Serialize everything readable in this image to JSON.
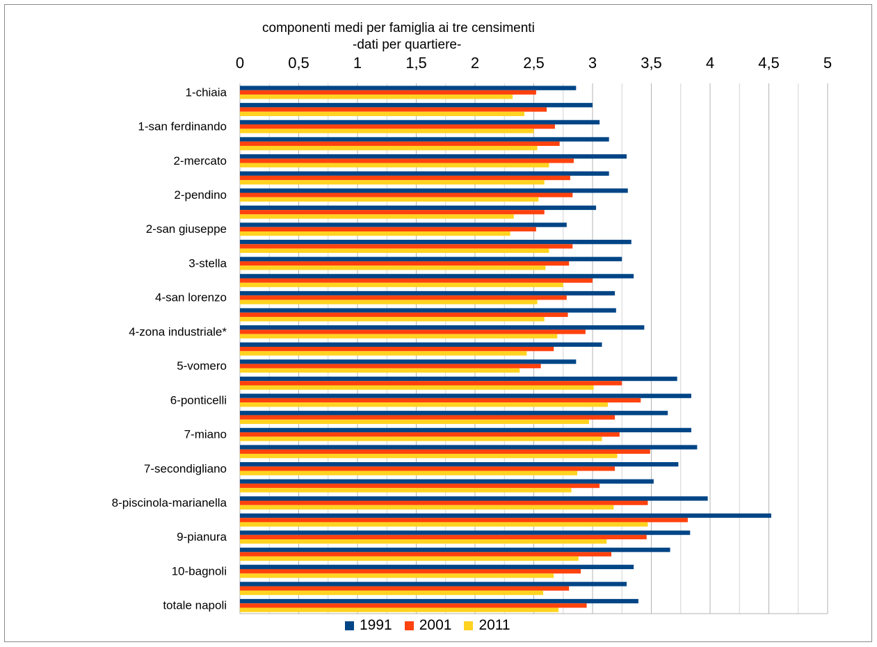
{
  "chart_data": {
    "type": "bar",
    "orientation": "horizontal",
    "title": "componenti medi per famiglia ai tre censimenti",
    "subtitle": "-dati per quartiere-",
    "xlim": [
      0,
      5
    ],
    "x_ticks": [
      "0",
      "0,5",
      "1",
      "1,5",
      "2",
      "2,5",
      "3",
      "3,5",
      "4",
      "4,5",
      "5"
    ],
    "x_axis_position": "top",
    "grid": true,
    "legend_position": "bottom",
    "category_labels": [
      "1-chiaia",
      "1-san ferdinando",
      "2-mercato",
      "2-pendino",
      "2-san giuseppe",
      "3-stella",
      "4-san lorenzo",
      "4-zona industriale*",
      "5-vomero",
      "6-ponticelli",
      "7-miano",
      "7-secondigliano",
      "8-piscinola-marianella",
      "9-pianura",
      "10-bagnoli",
      "totale napoli"
    ],
    "series": [
      {
        "name": "1991",
        "color": "#004586",
        "values": [
          2.86,
          3.0,
          3.06,
          3.14,
          3.29,
          3.14,
          3.3,
          3.03,
          2.78,
          3.33,
          3.25,
          3.35,
          3.19,
          3.2,
          3.44,
          3.08,
          2.86,
          3.72,
          3.84,
          3.64,
          3.84,
          3.89,
          3.73,
          3.52,
          3.98,
          4.52,
          3.83,
          3.66,
          3.35,
          3.29,
          3.39
        ]
      },
      {
        "name": "2001",
        "color": "#ff420e",
        "values": [
          2.52,
          2.61,
          2.68,
          2.72,
          2.84,
          2.81,
          2.83,
          2.59,
          2.52,
          2.83,
          2.8,
          3.0,
          2.78,
          2.79,
          2.94,
          2.67,
          2.56,
          3.25,
          3.41,
          3.19,
          3.23,
          3.49,
          3.19,
          3.06,
          3.47,
          3.81,
          3.46,
          3.16,
          2.9,
          2.8,
          2.95
        ]
      },
      {
        "name": "2011",
        "color": "#ffd320",
        "values": [
          2.32,
          2.42,
          2.5,
          2.53,
          2.63,
          2.59,
          2.54,
          2.33,
          2.3,
          2.63,
          2.6,
          2.75,
          2.53,
          2.59,
          2.7,
          2.44,
          2.38,
          3.01,
          3.13,
          2.97,
          3.08,
          3.21,
          2.87,
          2.82,
          3.18,
          3.47,
          3.12,
          2.88,
          2.67,
          2.58,
          2.71
        ]
      }
    ]
  }
}
